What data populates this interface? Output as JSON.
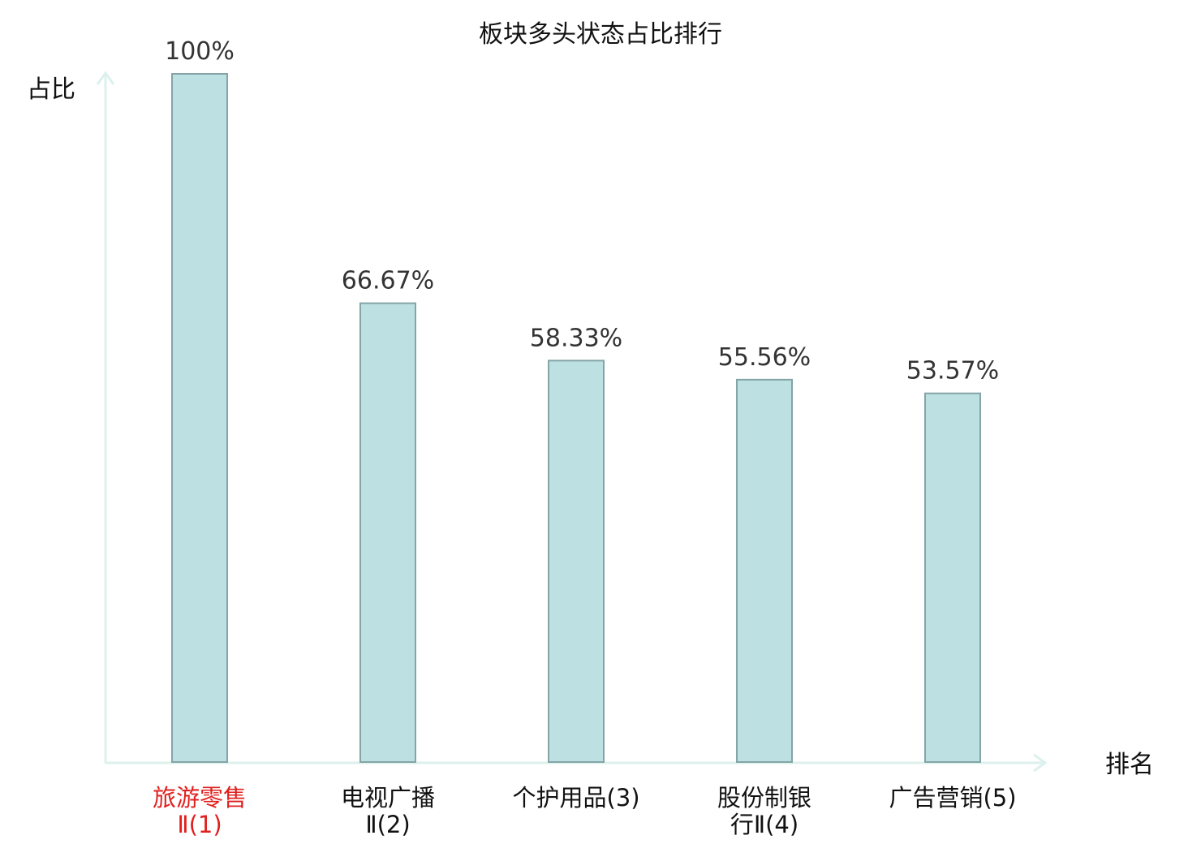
{
  "chart_data": {
    "type": "bar",
    "title": "板块多头状态占比排行",
    "ylabel": "占比",
    "xlabel": "排名",
    "ylim": [
      0,
      100
    ],
    "grid": false,
    "categories": [
      [
        "旅游零售",
        "Ⅱ(1)"
      ],
      [
        "电视广播",
        "Ⅱ(2)"
      ],
      [
        "个护用品(3)"
      ],
      [
        "股份制银",
        "行Ⅱ(4)"
      ],
      [
        "广告营销(5)"
      ]
    ],
    "values": [
      100,
      66.67,
      58.33,
      55.56,
      53.57
    ],
    "value_labels": [
      "100%",
      "66.67%",
      "58.33%",
      "55.56%",
      "53.57%"
    ],
    "highlight_index": 0,
    "colors": {
      "bar_fill": "#bde0e2",
      "bar_stroke": "#84a4a6",
      "axis": "#dcf1ee",
      "highlight_label": "#e0201e",
      "label": "#111111",
      "value_label": "#333333"
    }
  }
}
